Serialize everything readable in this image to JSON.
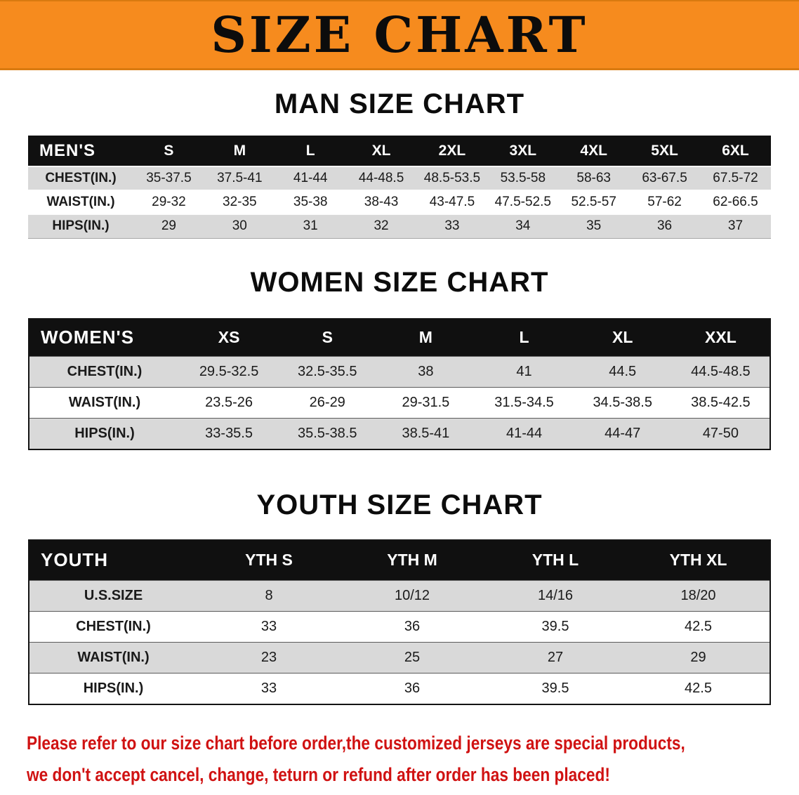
{
  "banner": {
    "title": "SIZE CHART"
  },
  "sections": [
    {
      "title": "MAN SIZE CHART",
      "table": {
        "corner_label": "MEN'S",
        "columns": [
          "S",
          "M",
          "L",
          "XL",
          "2XL",
          "3XL",
          "4XL",
          "5XL",
          "6XL"
        ],
        "rows": [
          {
            "label": "CHEST(IN.)",
            "values": [
              "35-37.5",
              "37.5-41",
              "41-44",
              "44-48.5",
              "48.5-53.5",
              "53.5-58",
              "58-63",
              "63-67.5",
              "67.5-72"
            ]
          },
          {
            "label": "WAIST(IN.)",
            "values": [
              "29-32",
              "32-35",
              "35-38",
              "38-43",
              "43-47.5",
              "47.5-52.5",
              "52.5-57",
              "57-62",
              "62-66.5"
            ]
          },
          {
            "label": "HIPS(IN.)",
            "values": [
              "29",
              "30",
              "31",
              "32",
              "33",
              "34",
              "35",
              "36",
              "37"
            ]
          }
        ]
      }
    },
    {
      "title": "WOMEN SIZE CHART",
      "table": {
        "corner_label": "WOMEN'S",
        "columns": [
          "XS",
          "S",
          "M",
          "L",
          "XL",
          "XXL"
        ],
        "rows": [
          {
            "label": "CHEST(IN.)",
            "values": [
              "29.5-32.5",
              "32.5-35.5",
              "38",
              "41",
              "44.5",
              "44.5-48.5"
            ]
          },
          {
            "label": "WAIST(IN.)",
            "values": [
              "23.5-26",
              "26-29",
              "29-31.5",
              "31.5-34.5",
              "34.5-38.5",
              "38.5-42.5"
            ]
          },
          {
            "label": "HIPS(IN.)",
            "values": [
              "33-35.5",
              "35.5-38.5",
              "38.5-41",
              "41-44",
              "44-47",
              "47-50"
            ]
          }
        ]
      }
    },
    {
      "title": "YOUTH SIZE CHART",
      "table": {
        "corner_label": "YOUTH",
        "columns": [
          "YTH S",
          "YTH M",
          "YTH L",
          "YTH XL"
        ],
        "rows": [
          {
            "label": "U.S.SIZE",
            "values": [
              "8",
              "10/12",
              "14/16",
              "18/20"
            ]
          },
          {
            "label": "CHEST(IN.)",
            "values": [
              "33",
              "36",
              "39.5",
              "42.5"
            ]
          },
          {
            "label": "WAIST(IN.)",
            "values": [
              "23",
              "25",
              "27",
              "29"
            ]
          },
          {
            "label": "HIPS(IN.)",
            "values": [
              "33",
              "36",
              "39.5",
              "42.5"
            ]
          }
        ]
      }
    }
  ],
  "disclaimer": {
    "lines": [
      "Please refer to our size chart before order,the customized jerseys are special products,",
      "we don't accept cancel, change, teturn or refund after order has been placed!"
    ]
  },
  "colors": {
    "banner_orange": "#f68b1e",
    "header_black": "#101010",
    "row_gray": "#d9d9d9",
    "disclaimer_red": "#d01212"
  }
}
